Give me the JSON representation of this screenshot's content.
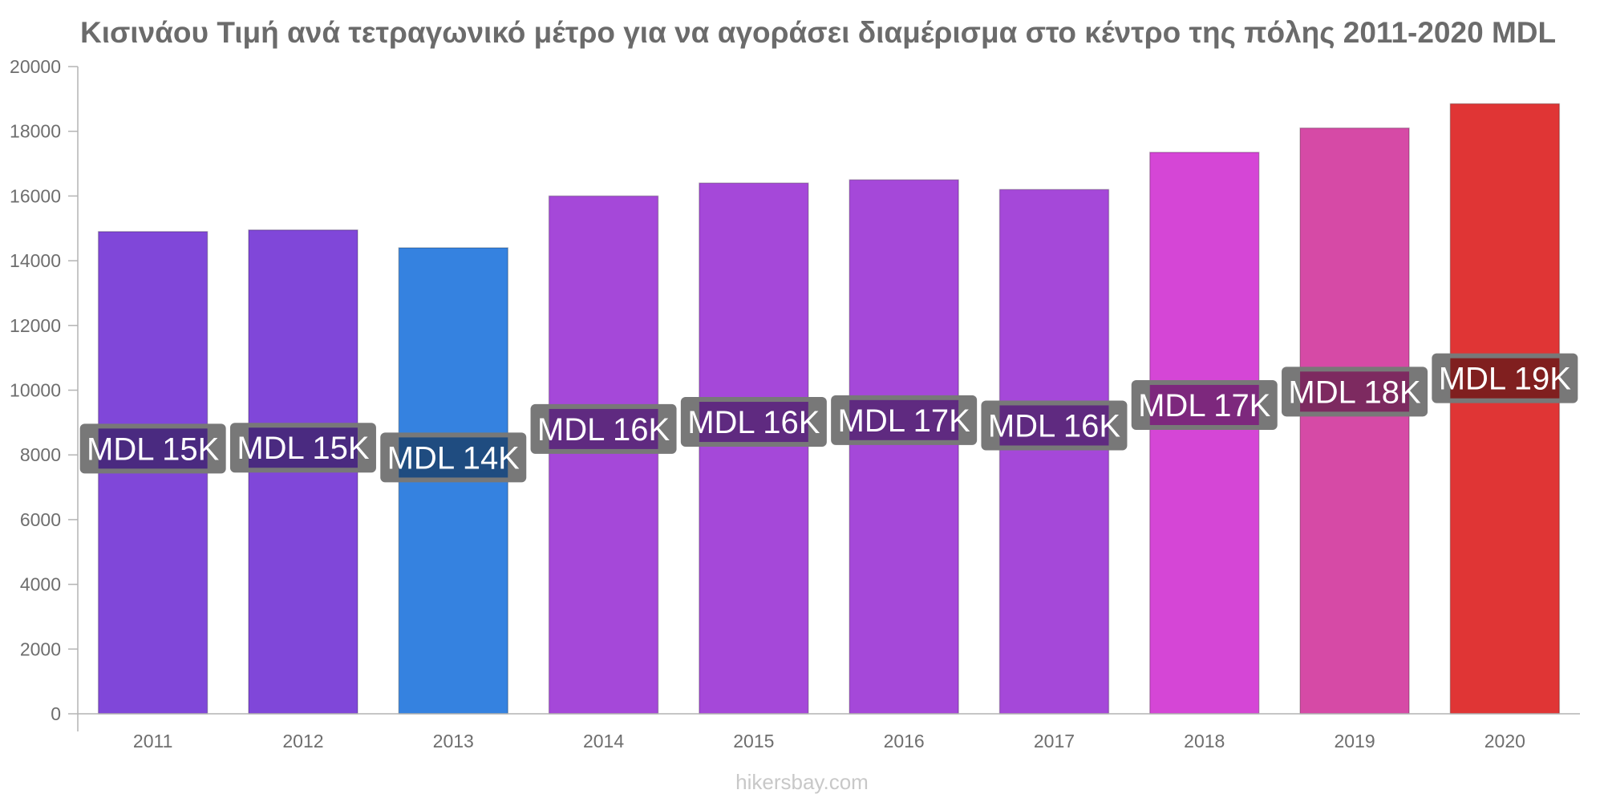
{
  "chart_data": {
    "type": "bar",
    "title": "Κισινάου Τιμή ανά τετραγωνικό μέτρο για να αγοράσει διαμέρισμα στο κέντρο της πόλης 2011-2020 MDL",
    "categories": [
      "2011",
      "2012",
      "2013",
      "2014",
      "2015",
      "2016",
      "2017",
      "2018",
      "2019",
      "2020"
    ],
    "values": [
      14900,
      14950,
      14400,
      16000,
      16400,
      16500,
      16200,
      17350,
      18100,
      18850
    ],
    "labels": [
      "MDL 15K",
      "MDL 15K",
      "MDL 14K",
      "MDL 16K",
      "MDL 16K",
      "MDL 17K",
      "MDL 16K",
      "MDL 17K",
      "MDL 18K",
      "MDL 19K"
    ],
    "colors": [
      "#8047d9",
      "#8047d9",
      "#3582e0",
      "#a548d9",
      "#a548d9",
      "#a548d9",
      "#a548d9",
      "#d546d6",
      "#d64aa6",
      "#e03535"
    ],
    "label_bg_colors": [
      "#4a2a80",
      "#4a2a80",
      "#1f4c80",
      "#5f2a80",
      "#5f2a80",
      "#5f2a80",
      "#5f2a80",
      "#7d287d",
      "#7d2a60",
      "#801f1f"
    ],
    "yticks": [
      "0",
      "2000",
      "4000",
      "6000",
      "8000",
      "10000",
      "12000",
      "14000",
      "16000",
      "18000",
      "20000"
    ],
    "ylim": [
      0,
      20000
    ],
    "xlabel": "",
    "ylabel": "",
    "grid": false,
    "legend": "none"
  },
  "footer": "hikersbay.com"
}
